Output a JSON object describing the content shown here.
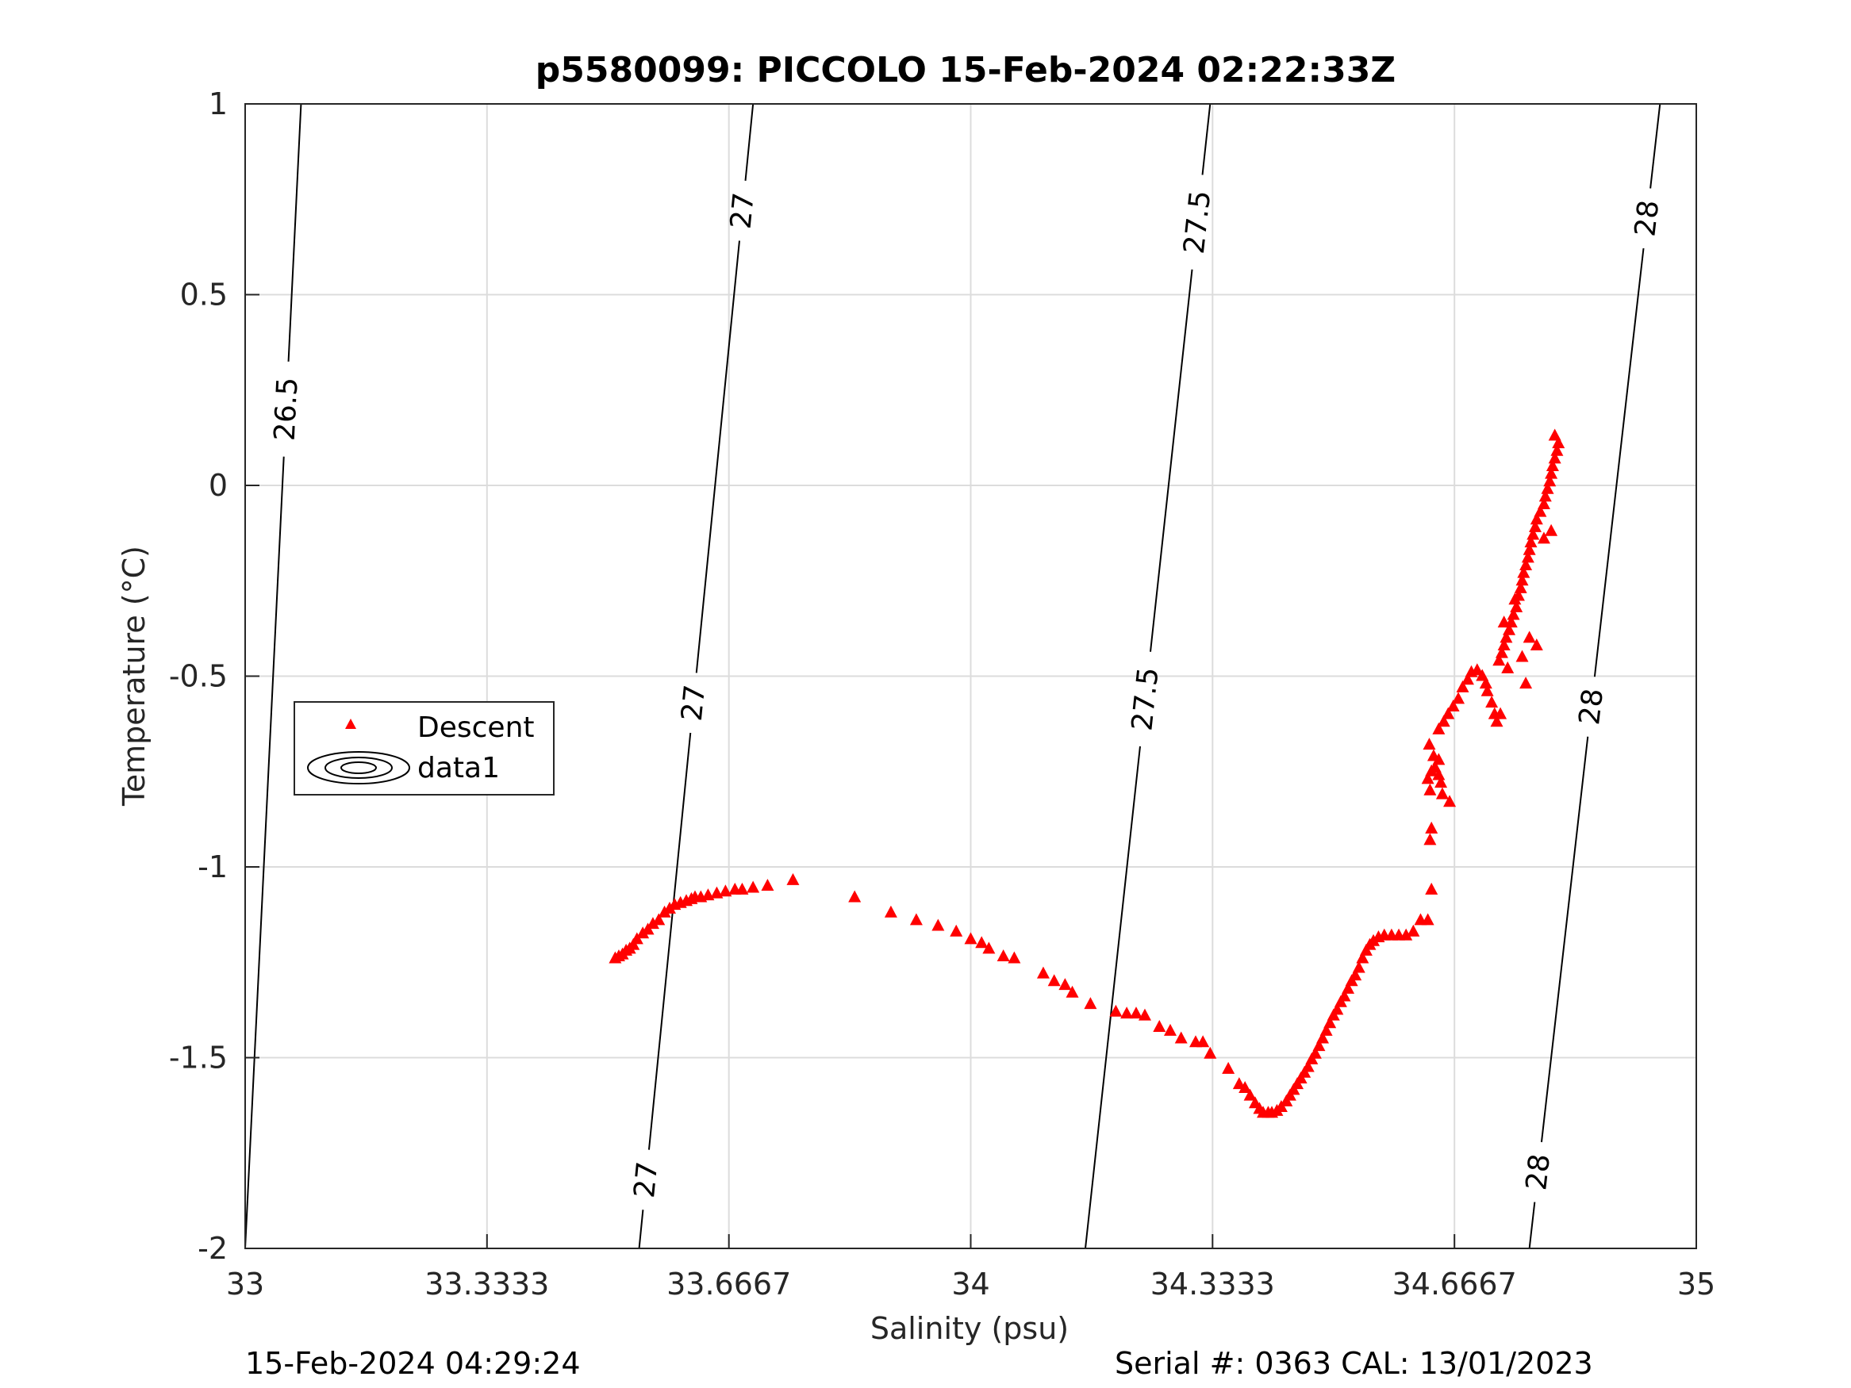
{
  "chart_data": {
    "type": "scatter",
    "title": "p5580099: PICCOLO 15-Feb-2024 02:22:33Z",
    "xlabel": "Salinity (psu)",
    "ylabel": "Temperature (°C)",
    "xlim": [
      33,
      35
    ],
    "ylim": [
      -2,
      1
    ],
    "xticks": [
      33,
      33.3333,
      33.6667,
      34,
      34.3333,
      34.6667,
      35
    ],
    "xtick_labels": [
      "33",
      "33.3333",
      "33.6667",
      "34",
      "34.3333",
      "34.6667",
      "35"
    ],
    "yticks": [
      -2,
      -1.5,
      -1,
      -0.5,
      0,
      0.5,
      1
    ],
    "ytick_labels": [
      "-2",
      "-1.5",
      "-1",
      "-0.5",
      "0",
      "0.5",
      "1"
    ],
    "grid": true,
    "legend_position": "left-middle",
    "legend": [
      "Descent",
      "data1"
    ],
    "series": [
      {
        "name": "Descent",
        "marker": "triangle",
        "color": "#ff0000",
        "points": [
          [
            33.51,
            -1.24
          ],
          [
            33.515,
            -1.235
          ],
          [
            33.52,
            -1.23
          ],
          [
            33.525,
            -1.22
          ],
          [
            33.53,
            -1.215
          ],
          [
            33.535,
            -1.205
          ],
          [
            33.54,
            -1.19
          ],
          [
            33.548,
            -1.175
          ],
          [
            33.555,
            -1.165
          ],
          [
            33.562,
            -1.15
          ],
          [
            33.57,
            -1.14
          ],
          [
            33.578,
            -1.12
          ],
          [
            33.585,
            -1.11
          ],
          [
            33.592,
            -1.1
          ],
          [
            33.6,
            -1.095
          ],
          [
            33.608,
            -1.09
          ],
          [
            33.615,
            -1.085
          ],
          [
            33.62,
            -1.08
          ],
          [
            33.628,
            -1.08
          ],
          [
            33.638,
            -1.075
          ],
          [
            33.65,
            -1.07
          ],
          [
            33.662,
            -1.065
          ],
          [
            33.675,
            -1.06
          ],
          [
            33.685,
            -1.06
          ],
          [
            33.7,
            -1.055
          ],
          [
            33.72,
            -1.05
          ],
          [
            33.755,
            -1.035
          ],
          [
            33.84,
            -1.08
          ],
          [
            33.89,
            -1.12
          ],
          [
            33.925,
            -1.14
          ],
          [
            33.955,
            -1.155
          ],
          [
            33.98,
            -1.17
          ],
          [
            34.0,
            -1.19
          ],
          [
            34.015,
            -1.2
          ],
          [
            34.025,
            -1.215
          ],
          [
            34.045,
            -1.235
          ],
          [
            34.06,
            -1.24
          ],
          [
            34.1,
            -1.28
          ],
          [
            34.115,
            -1.3
          ],
          [
            34.13,
            -1.31
          ],
          [
            34.14,
            -1.33
          ],
          [
            34.165,
            -1.36
          ],
          [
            34.2,
            -1.38
          ],
          [
            34.215,
            -1.385
          ],
          [
            34.228,
            -1.385
          ],
          [
            34.24,
            -1.39
          ],
          [
            34.26,
            -1.42
          ],
          [
            34.275,
            -1.43
          ],
          [
            34.29,
            -1.45
          ],
          [
            34.31,
            -1.46
          ],
          [
            34.32,
            -1.46
          ],
          [
            34.33,
            -1.49
          ],
          [
            34.355,
            -1.53
          ],
          [
            34.37,
            -1.57
          ],
          [
            34.378,
            -1.58
          ],
          [
            34.385,
            -1.6
          ],
          [
            34.392,
            -1.62
          ],
          [
            34.398,
            -1.635
          ],
          [
            34.403,
            -1.645
          ],
          [
            34.41,
            -1.645
          ],
          [
            34.415,
            -1.645
          ],
          [
            34.422,
            -1.64
          ],
          [
            34.428,
            -1.63
          ],
          [
            34.435,
            -1.615
          ],
          [
            34.44,
            -1.6
          ],
          [
            34.445,
            -1.585
          ],
          [
            34.45,
            -1.57
          ],
          [
            34.455,
            -1.555
          ],
          [
            34.46,
            -1.54
          ],
          [
            34.465,
            -1.525
          ],
          [
            34.47,
            -1.505
          ],
          [
            34.475,
            -1.49
          ],
          [
            34.48,
            -1.47
          ],
          [
            34.485,
            -1.45
          ],
          [
            34.49,
            -1.43
          ],
          [
            34.495,
            -1.41
          ],
          [
            34.5,
            -1.39
          ],
          [
            34.505,
            -1.375
          ],
          [
            34.51,
            -1.355
          ],
          [
            34.515,
            -1.34
          ],
          [
            34.52,
            -1.32
          ],
          [
            34.525,
            -1.3
          ],
          [
            34.53,
            -1.285
          ],
          [
            34.535,
            -1.265
          ],
          [
            34.54,
            -1.24
          ],
          [
            34.545,
            -1.22
          ],
          [
            34.55,
            -1.205
          ],
          [
            34.555,
            -1.195
          ],
          [
            34.562,
            -1.185
          ],
          [
            34.57,
            -1.18
          ],
          [
            34.58,
            -1.18
          ],
          [
            34.59,
            -1.18
          ],
          [
            34.6,
            -1.18
          ],
          [
            34.61,
            -1.17
          ],
          [
            34.62,
            -1.14
          ],
          [
            34.63,
            -1.14
          ],
          [
            34.635,
            -1.06
          ],
          [
            34.633,
            -0.93
          ],
          [
            34.635,
            -0.9
          ],
          [
            34.633,
            -0.8
          ],
          [
            34.63,
            -0.77
          ],
          [
            34.635,
            -0.75
          ],
          [
            34.64,
            -0.74
          ],
          [
            34.645,
            -0.76
          ],
          [
            34.648,
            -0.78
          ],
          [
            34.645,
            -0.72
          ],
          [
            34.638,
            -0.71
          ],
          [
            34.632,
            -0.68
          ],
          [
            34.65,
            -0.81
          ],
          [
            34.66,
            -0.83
          ],
          [
            34.645,
            -0.64
          ],
          [
            34.652,
            -0.62
          ],
          [
            34.658,
            -0.6
          ],
          [
            34.665,
            -0.58
          ],
          [
            34.672,
            -0.56
          ],
          [
            34.678,
            -0.53
          ],
          [
            34.685,
            -0.51
          ],
          [
            34.69,
            -0.49
          ],
          [
            34.698,
            -0.485
          ],
          [
            34.705,
            -0.5
          ],
          [
            34.71,
            -0.52
          ],
          [
            34.712,
            -0.54
          ],
          [
            34.718,
            -0.57
          ],
          [
            34.722,
            -0.6
          ],
          [
            34.725,
            -0.62
          ],
          [
            34.73,
            -0.6
          ],
          [
            34.728,
            -0.46
          ],
          [
            34.732,
            -0.44
          ],
          [
            34.735,
            -0.42
          ],
          [
            34.738,
            -0.4
          ],
          [
            34.742,
            -0.38
          ],
          [
            34.745,
            -0.36
          ],
          [
            34.748,
            -0.34
          ],
          [
            34.752,
            -0.32
          ],
          [
            34.75,
            -0.3
          ],
          [
            34.755,
            -0.29
          ],
          [
            34.758,
            -0.27
          ],
          [
            34.76,
            -0.25
          ],
          [
            34.762,
            -0.23
          ],
          [
            34.765,
            -0.21
          ],
          [
            34.768,
            -0.19
          ],
          [
            34.77,
            -0.17
          ],
          [
            34.772,
            -0.15
          ],
          [
            34.775,
            -0.13
          ],
          [
            34.778,
            -0.11
          ],
          [
            34.78,
            -0.09
          ],
          [
            34.785,
            -0.07
          ],
          [
            34.79,
            -0.05
          ],
          [
            34.792,
            -0.03
          ],
          [
            34.795,
            -0.01
          ],
          [
            34.798,
            0.01
          ],
          [
            34.8,
            0.03
          ],
          [
            34.802,
            0.05
          ],
          [
            34.805,
            0.07
          ],
          [
            34.808,
            0.09
          ],
          [
            34.81,
            0.11
          ],
          [
            34.805,
            0.13
          ],
          [
            34.78,
            -0.42
          ],
          [
            34.77,
            -0.4
          ],
          [
            34.76,
            -0.45
          ],
          [
            34.79,
            -0.14
          ],
          [
            34.8,
            -0.12
          ],
          [
            34.765,
            -0.52
          ],
          [
            34.74,
            -0.48
          ],
          [
            34.735,
            -0.36
          ]
        ]
      }
    ],
    "contours": [
      {
        "level": "26.5",
        "x": [
          33.0,
          33.077
        ],
        "labels": [
          {
            "text": "26.5",
            "y": 0.2
          }
        ]
      },
      {
        "level": "27",
        "x": [
          33.543,
          33.7
        ],
        "labels": [
          {
            "text": "27",
            "y": 0.72
          },
          {
            "text": "27",
            "y": -0.57
          },
          {
            "text": "27",
            "y": -1.82
          }
        ]
      },
      {
        "level": "27.5",
        "x": [
          34.158,
          34.33
        ],
        "labels": [
          {
            "text": "27.5",
            "y": 0.69
          },
          {
            "text": "27.5",
            "y": -0.56
          }
        ]
      },
      {
        "level": "28",
        "x": [
          34.77,
          34.95
        ],
        "labels": [
          {
            "text": "28",
            "y": 0.7
          },
          {
            "text": "28",
            "y": -0.58
          },
          {
            "text": "28",
            "y": -1.8
          }
        ]
      }
    ],
    "footer_left": "15-Feb-2024 04:29:24",
    "footer_right": "Serial #: 0363  CAL: 13/01/2023"
  }
}
